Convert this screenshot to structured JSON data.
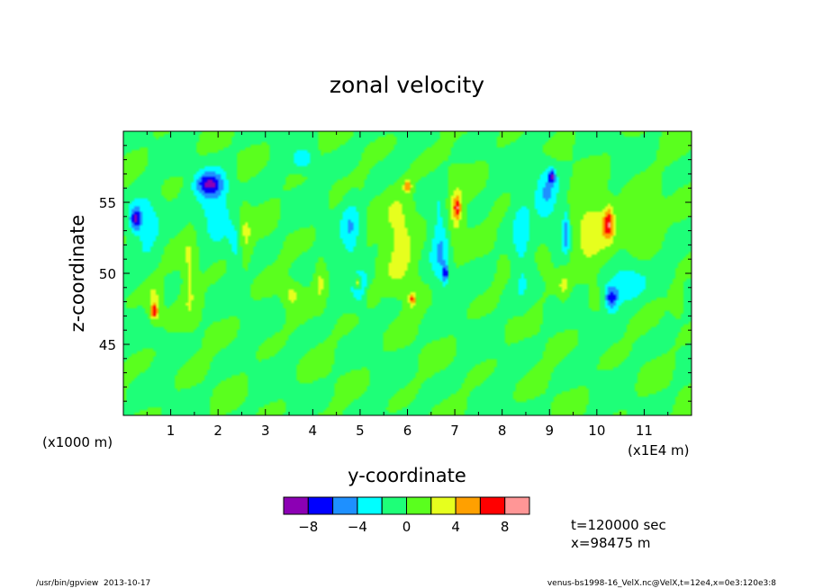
{
  "chart_data": {
    "type": "heatmap",
    "title": "zonal velocity",
    "xlabel": "y-coordinate",
    "ylabel": "z-coordinate",
    "x_multiplier_note": "(x1E4 m)",
    "y_multiplier_note": "(x1000 m)",
    "xlim": [
      0,
      12
    ],
    "ylim": [
      40,
      60
    ],
    "x_ticks": [
      "1",
      "2",
      "3",
      "4",
      "5",
      "6",
      "7",
      "8",
      "9",
      "10",
      "11"
    ],
    "y_ticks": [
      "45",
      "50",
      "55"
    ],
    "colorbar": {
      "tick_labels": [
        "-8",
        "-4",
        "0",
        "4",
        "8"
      ],
      "levels": [
        -10,
        -8,
        -6,
        -4,
        -2,
        0,
        2,
        4,
        6,
        8,
        10
      ],
      "colors": [
        "#8c00b4",
        "#0000ff",
        "#1e90ff",
        "#00ffff",
        "#1eff78",
        "#5aff1e",
        "#e6ff1e",
        "#ffa000",
        "#ff0000",
        "#ff9696"
      ]
    },
    "field_features": [
      {
        "y": 0.25,
        "z": 53.8,
        "value": -7,
        "spread_y": 0.12,
        "spread_z": 0.8
      },
      {
        "y": 1.8,
        "z": 56.3,
        "value": -6,
        "spread_y": 0.28,
        "spread_z": 0.8
      },
      {
        "y": 1.95,
        "z": 55.0,
        "value": -3.5,
        "spread_y": 0.35,
        "spread_z": 2.2
      },
      {
        "y": 0.5,
        "z": 53.5,
        "value": -3.5,
        "spread_y": 0.3,
        "spread_z": 2.2
      },
      {
        "y": 3.8,
        "z": 58.0,
        "value": -3.5,
        "spread_y": 0.2,
        "spread_z": 0.7
      },
      {
        "y": 4.8,
        "z": 53.0,
        "value": -3.5,
        "spread_y": 0.2,
        "spread_z": 2.4
      },
      {
        "y": 5.05,
        "z": 49.0,
        "value": -3.2,
        "spread_y": 0.18,
        "spread_z": 1.3
      },
      {
        "y": 6.7,
        "z": 52.0,
        "value": -3.5,
        "spread_y": 0.2,
        "spread_z": 3.5
      },
      {
        "y": 6.8,
        "z": 50.0,
        "value": -6,
        "spread_y": 0.06,
        "spread_z": 0.6
      },
      {
        "y": 9.05,
        "z": 56.8,
        "value": -6,
        "spread_y": 0.07,
        "spread_z": 0.5
      },
      {
        "y": 8.95,
        "z": 55.5,
        "value": -3.5,
        "spread_y": 0.25,
        "spread_z": 2.2
      },
      {
        "y": 9.35,
        "z": 53.0,
        "value": -5.5,
        "spread_y": 0.08,
        "spread_z": 1.6
      },
      {
        "y": 8.4,
        "z": 52.0,
        "value": -2.8,
        "spread_y": 0.2,
        "spread_z": 4.0
      },
      {
        "y": 10.3,
        "z": 48.3,
        "value": -6.5,
        "spread_y": 0.15,
        "spread_z": 0.9
      },
      {
        "y": 10.6,
        "z": 49.3,
        "value": -3.5,
        "spread_y": 0.4,
        "spread_z": 1.5
      },
      {
        "y": 2.4,
        "z": 52.0,
        "value": -3,
        "spread_y": 0.15,
        "spread_z": 1.5
      },
      {
        "y": 0.65,
        "z": 47.3,
        "value": 6,
        "spread_y": 0.08,
        "spread_z": 0.5
      },
      {
        "y": 0.65,
        "z": 48.0,
        "value": 3,
        "spread_y": 0.15,
        "spread_z": 1.4
      },
      {
        "y": 1.4,
        "z": 50.0,
        "value": 2.6,
        "spread_y": 0.15,
        "spread_z": 3.0
      },
      {
        "y": 2.55,
        "z": 52.5,
        "value": 3,
        "spread_y": 0.15,
        "spread_z": 2.0
      },
      {
        "y": 3.55,
        "z": 48.5,
        "value": 2.6,
        "spread_y": 0.18,
        "spread_z": 0.8
      },
      {
        "y": 4.15,
        "z": 49.5,
        "value": 2.6,
        "spread_y": 0.12,
        "spread_z": 1.5
      },
      {
        "y": 4.95,
        "z": 49.3,
        "value": 6,
        "spread_y": 0.07,
        "spread_z": 0.4
      },
      {
        "y": 5.85,
        "z": 52.5,
        "value": 3,
        "spread_y": 0.35,
        "spread_z": 3.5
      },
      {
        "y": 6.0,
        "z": 56.1,
        "value": 6,
        "spread_y": 0.08,
        "spread_z": 0.4
      },
      {
        "y": 6.1,
        "z": 48.2,
        "value": 6,
        "spread_y": 0.07,
        "spread_z": 0.5
      },
      {
        "y": 7.05,
        "z": 54.6,
        "value": 6,
        "spread_y": 0.07,
        "spread_z": 0.7
      },
      {
        "y": 7.0,
        "z": 54.0,
        "value": 3,
        "spread_y": 0.2,
        "spread_z": 2.5
      },
      {
        "y": 9.9,
        "z": 53.0,
        "value": 3,
        "spread_y": 0.45,
        "spread_z": 3.0
      },
      {
        "y": 10.25,
        "z": 53.5,
        "value": 6,
        "spread_y": 0.1,
        "spread_z": 1.1
      },
      {
        "y": 11.0,
        "z": 54.0,
        "value": 2.6,
        "spread_y": 0.35,
        "spread_z": 2.0
      },
      {
        "y": 11.7,
        "z": 48.0,
        "value": 2.6,
        "spread_y": 0.15,
        "spread_z": 1.0
      },
      {
        "y": 8.9,
        "z": 51.0,
        "value": 2.6,
        "spread_y": 0.15,
        "spread_z": 1.0
      },
      {
        "y": 9.3,
        "z": 49.0,
        "value": 2.6,
        "spread_y": 0.12,
        "spread_z": 1.0
      },
      {
        "y": 5.2,
        "z": 48.5,
        "value": 2.6,
        "spread_y": 0.15,
        "spread_z": 0.8
      }
    ],
    "annotations": [
      "t=120000 sec",
      "x=98475 m"
    ]
  },
  "footer": {
    "left": "/usr/bin/gpview  2013-10-17",
    "right": "venus-bs1998-16_VelX.nc@VelX,t=12e4,x=0e3:120e3:8"
  }
}
